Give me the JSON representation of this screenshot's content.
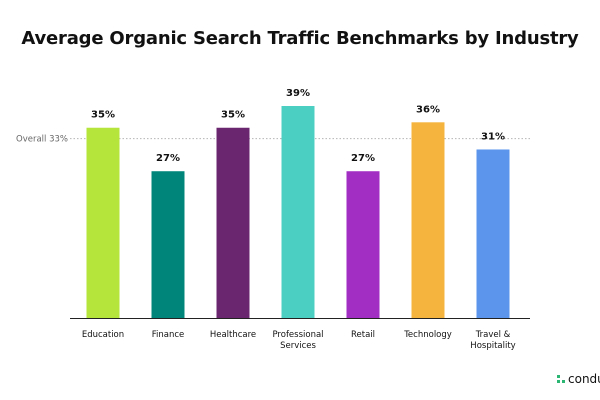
{
  "chart_data": {
    "type": "bar",
    "title": "Average Organic Search Traffic Benchmarks by Industry",
    "categories": [
      "Education",
      "Finance",
      "Healthcare",
      "Professional Services",
      "Retail",
      "Technology",
      "Travel & Hospitality"
    ],
    "category_lines": [
      [
        "Education"
      ],
      [
        "Finance"
      ],
      [
        "Healthcare"
      ],
      [
        "Professional",
        "Services"
      ],
      [
        "Retail"
      ],
      [
        "Technology"
      ],
      [
        "Travel &",
        "Hospitality"
      ]
    ],
    "values": [
      35,
      27,
      35,
      39,
      27,
      36,
      31
    ],
    "value_labels": [
      "35%",
      "27%",
      "35%",
      "39%",
      "27%",
      "36%",
      "31%"
    ],
    "colors": [
      "#b5e43a",
      "#00857a",
      "#6b2670",
      "#4ccfc3",
      "#a32ec4",
      "#f5b43d",
      "#5b95ec"
    ],
    "reference_line": {
      "value": 33,
      "label": "Overall 33%"
    },
    "ylim": [
      0,
      39
    ],
    "xlabel": "",
    "ylabel": "",
    "grid": false
  },
  "brand": {
    "name": "conduc",
    "icon": "conductor-logo-icon",
    "color": "#2bb673"
  }
}
